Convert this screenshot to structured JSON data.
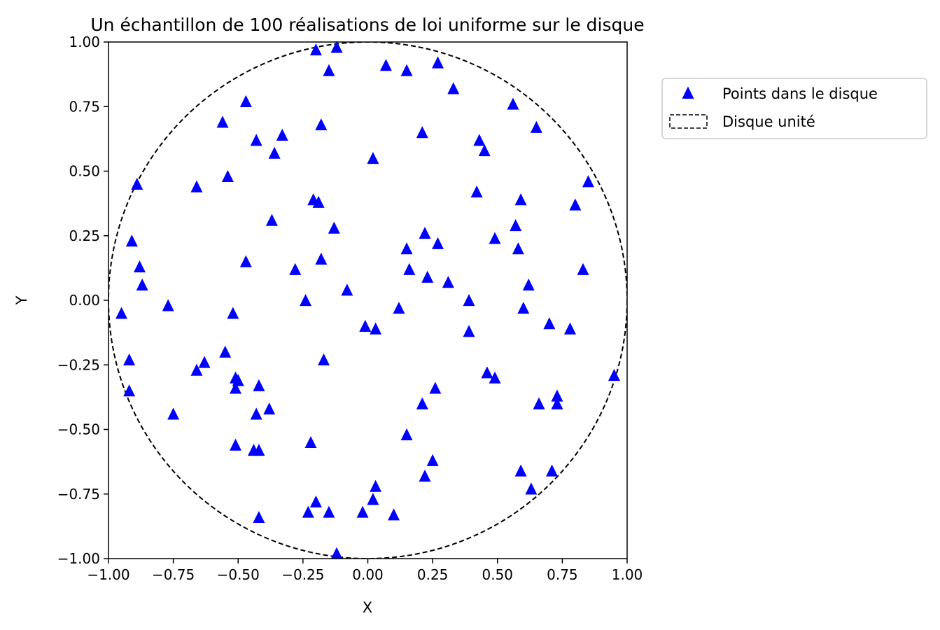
{
  "chart_data": {
    "type": "scatter",
    "title": "Un échantillon de 100 réalisations de loi uniforme sur le disque",
    "xlabel": "X",
    "ylabel": "Y",
    "xlim": [
      -1.0,
      1.0
    ],
    "ylim": [
      -1.0,
      1.0
    ],
    "xticks": [
      "−1.00",
      "−0.75",
      "−0.50",
      "−0.25",
      "0.00",
      "0.25",
      "0.50",
      "0.75",
      "1.00"
    ],
    "yticks": [
      "−1.00",
      "−0.75",
      "−0.50",
      "−0.25",
      "0.00",
      "0.25",
      "0.50",
      "0.75",
      "1.00"
    ],
    "grid": false,
    "legend_position": "outside-top-right",
    "colors": {
      "points": "#0000ff",
      "circle": "#000000"
    },
    "series": [
      {
        "name": "Points dans le disque",
        "marker": "triangle-up",
        "points": [
          [
            -0.2,
            0.97
          ],
          [
            -0.12,
            0.98
          ],
          [
            -0.15,
            0.89
          ],
          [
            0.07,
            0.91
          ],
          [
            0.15,
            0.89
          ],
          [
            0.27,
            0.92
          ],
          [
            0.33,
            0.82
          ],
          [
            -0.47,
            0.77
          ],
          [
            -0.56,
            0.69
          ],
          [
            -0.18,
            0.68
          ],
          [
            -0.43,
            0.62
          ],
          [
            -0.33,
            0.64
          ],
          [
            -0.36,
            0.57
          ],
          [
            0.02,
            0.55
          ],
          [
            0.21,
            0.65
          ],
          [
            0.56,
            0.76
          ],
          [
            0.65,
            0.67
          ],
          [
            0.43,
            0.62
          ],
          [
            0.45,
            0.58
          ],
          [
            -0.54,
            0.48
          ],
          [
            -0.66,
            0.44
          ],
          [
            -0.89,
            0.45
          ],
          [
            0.42,
            0.42
          ],
          [
            0.85,
            0.46
          ],
          [
            0.8,
            0.37
          ],
          [
            0.59,
            0.39
          ],
          [
            -0.21,
            0.39
          ],
          [
            -0.19,
            0.38
          ],
          [
            -0.37,
            0.31
          ],
          [
            -0.13,
            0.28
          ],
          [
            0.22,
            0.26
          ],
          [
            0.27,
            0.22
          ],
          [
            0.49,
            0.24
          ],
          [
            0.57,
            0.29
          ],
          [
            0.58,
            0.2
          ],
          [
            0.15,
            0.2
          ],
          [
            -0.91,
            0.23
          ],
          [
            -0.88,
            0.13
          ],
          [
            -0.87,
            0.06
          ],
          [
            -0.47,
            0.15
          ],
          [
            -0.18,
            0.16
          ],
          [
            -0.28,
            0.12
          ],
          [
            0.16,
            0.12
          ],
          [
            0.23,
            0.09
          ],
          [
            0.31,
            0.07
          ],
          [
            0.62,
            0.06
          ],
          [
            0.83,
            0.12
          ],
          [
            -0.08,
            0.04
          ],
          [
            -0.24,
            -0.0
          ],
          [
            -0.77,
            -0.02
          ],
          [
            -0.95,
            -0.05
          ],
          [
            0.39,
            -0.0
          ],
          [
            0.6,
            -0.03
          ],
          [
            0.12,
            -0.03
          ],
          [
            -0.52,
            -0.05
          ],
          [
            -0.01,
            -0.1
          ],
          [
            0.03,
            -0.11
          ],
          [
            0.7,
            -0.09
          ],
          [
            0.78,
            -0.11
          ],
          [
            0.39,
            -0.12
          ],
          [
            -0.92,
            -0.23
          ],
          [
            -0.55,
            -0.2
          ],
          [
            -0.63,
            -0.24
          ],
          [
            -0.66,
            -0.27
          ],
          [
            -0.17,
            -0.23
          ],
          [
            -0.51,
            -0.3
          ],
          [
            -0.5,
            -0.31
          ],
          [
            -0.51,
            -0.34
          ],
          [
            -0.42,
            -0.33
          ],
          [
            0.46,
            -0.28
          ],
          [
            0.49,
            -0.3
          ],
          [
            0.95,
            -0.29
          ],
          [
            -0.92,
            -0.35
          ],
          [
            0.26,
            -0.34
          ],
          [
            0.21,
            -0.4
          ],
          [
            0.73,
            -0.37
          ],
          [
            0.73,
            -0.4
          ],
          [
            0.66,
            -0.4
          ],
          [
            -0.75,
            -0.44
          ],
          [
            -0.43,
            -0.44
          ],
          [
            -0.38,
            -0.42
          ],
          [
            0.15,
            -0.52
          ],
          [
            -0.51,
            -0.56
          ],
          [
            -0.44,
            -0.58
          ],
          [
            -0.42,
            -0.58
          ],
          [
            -0.22,
            -0.55
          ],
          [
            0.25,
            -0.62
          ],
          [
            0.22,
            -0.68
          ],
          [
            0.59,
            -0.66
          ],
          [
            0.71,
            -0.66
          ],
          [
            0.63,
            -0.73
          ],
          [
            0.03,
            -0.72
          ],
          [
            0.02,
            -0.77
          ],
          [
            -0.2,
            -0.78
          ],
          [
            -0.23,
            -0.82
          ],
          [
            -0.15,
            -0.82
          ],
          [
            -0.02,
            -0.82
          ],
          [
            0.1,
            -0.83
          ],
          [
            -0.42,
            -0.84
          ],
          [
            -0.12,
            -0.98
          ]
        ]
      },
      {
        "name": "Disque unité",
        "shape": "circle",
        "center": [
          0,
          0
        ],
        "radius": 1.0,
        "line_style": "dashed"
      }
    ]
  }
}
